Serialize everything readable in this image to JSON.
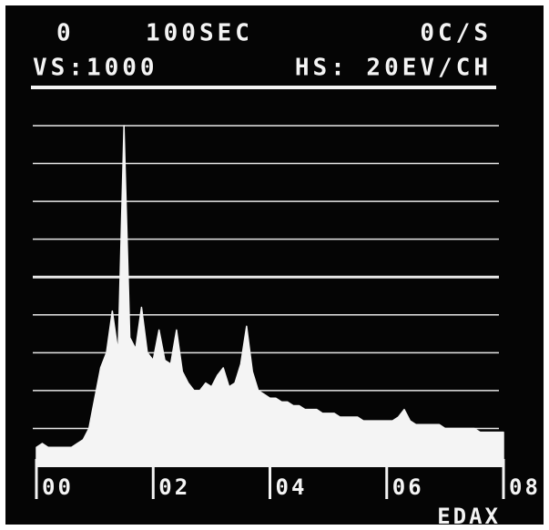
{
  "chart_data": {
    "type": "area",
    "header": [
      "0",
      "100SEC",
      "0C/S"
    ],
    "subtitle": [
      "VS:1000",
      "HS: 20EV/CH"
    ],
    "brand": "EDAX",
    "color": "#f4f4f4",
    "x": [
      0,
      0.1,
      0.2,
      0.3,
      0.4,
      0.5,
      0.6,
      0.7,
      0.8,
      0.9,
      1,
      1.1,
      1.2,
      1.3,
      1.4,
      1.5,
      1.6,
      1.7,
      1.8,
      1.9,
      2,
      2.1,
      2.2,
      2.3,
      2.4,
      2.5,
      2.6,
      2.7,
      2.8,
      2.9,
      3,
      3.1,
      3.2,
      3.3,
      3.4,
      3.5,
      3.6,
      3.7,
      3.8,
      3.9,
      4,
      4.1,
      4.2,
      4.3,
      4.4,
      4.5,
      4.6,
      4.7,
      4.8,
      4.9,
      5,
      5.1,
      5.2,
      5.3,
      5.4,
      5.5,
      5.6,
      5.7,
      5.8,
      5.9,
      6,
      6.1,
      6.2,
      6.3,
      6.4,
      6.5,
      6.6,
      6.7,
      6.8,
      6.9,
      7,
      7.1,
      7.2,
      7.3,
      7.4,
      7.5,
      7.6,
      7.7,
      7.8,
      7.9,
      8
    ],
    "values": [
      0.5,
      0.6,
      0.5,
      0.5,
      0.5,
      0.5,
      0.5,
      0.6,
      0.7,
      1.0,
      1.8,
      2.6,
      3.0,
      4.1,
      3.0,
      9.0,
      3.4,
      3.1,
      4.2,
      3.0,
      2.8,
      3.6,
      2.8,
      2.7,
      3.6,
      2.5,
      2.2,
      2.0,
      2.0,
      2.2,
      2.1,
      2.4,
      2.6,
      2.1,
      2.2,
      2.7,
      3.7,
      2.5,
      2.0,
      1.9,
      1.8,
      1.8,
      1.7,
      1.7,
      1.6,
      1.6,
      1.5,
      1.5,
      1.5,
      1.4,
      1.4,
      1.4,
      1.3,
      1.3,
      1.3,
      1.3,
      1.2,
      1.2,
      1.2,
      1.2,
      1.2,
      1.2,
      1.3,
      1.5,
      1.2,
      1.1,
      1.1,
      1.1,
      1.1,
      1.1,
      1.0,
      1.0,
      1.0,
      1.0,
      1.0,
      1.0,
      0.9,
      0.9,
      0.9,
      0.9,
      0.9
    ],
    "xlim": [
      0,
      8
    ],
    "ylim": [
      0,
      9
    ],
    "ygrid": [
      1,
      2,
      3,
      4,
      5,
      6,
      7,
      8,
      9
    ],
    "xticks": [
      {
        "value": 0,
        "label": "00"
      },
      {
        "value": 2,
        "label": "02"
      },
      {
        "value": 4,
        "label": "04"
      },
      {
        "value": 6,
        "label": "06"
      },
      {
        "value": 8,
        "label": "08"
      }
    ]
  }
}
